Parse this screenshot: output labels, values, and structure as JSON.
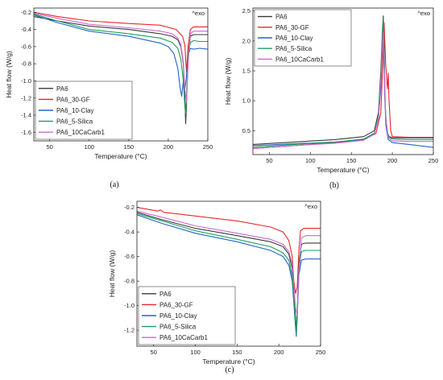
{
  "colors": {
    "PA6": "#3a3a3a",
    "PA6_30-GF": "#e8262c",
    "PA6_10-Clay": "#1f66c9",
    "PA6_5-Silica": "#1aa05c",
    "PA6_10CaCarb1": "#c86ad0"
  },
  "chart_data": [
    {
      "panel": "a",
      "caption": "(a)",
      "type": "line",
      "annotation": "^exo",
      "xlabel": "Temperature (°C)",
      "ylabel": "Heat flow (W/g)",
      "xlim": [
        30,
        250
      ],
      "ylim": [
        -1.7,
        -0.15
      ],
      "xticks": [
        50,
        100,
        150,
        200,
        250
      ],
      "yticks": [
        -0.2,
        -0.4,
        -0.6,
        -0.8,
        -1.0,
        -1.2,
        -1.4,
        -1.6
      ],
      "legend": "bottom-left",
      "series": [
        {
          "name": "PA6",
          "x": [
            30,
            60,
            100,
            150,
            190,
            205,
            212,
            216,
            219,
            221,
            222,
            223,
            225,
            228,
            232,
            240,
            250
          ],
          "y": [
            -0.25,
            -0.3,
            -0.36,
            -0.4,
            -0.45,
            -0.48,
            -0.52,
            -0.6,
            -0.8,
            -1.2,
            -1.5,
            -1.3,
            -0.7,
            -0.48,
            -0.46,
            -0.46,
            -0.46
          ]
        },
        {
          "name": "PA6_30-GF",
          "x": [
            30,
            60,
            100,
            150,
            190,
            210,
            218,
            221,
            223,
            225,
            228,
            232,
            240,
            250
          ],
          "y": [
            -0.2,
            -0.25,
            -0.3,
            -0.33,
            -0.35,
            -0.4,
            -0.48,
            -0.58,
            -0.9,
            -0.6,
            -0.4,
            -0.37,
            -0.37,
            -0.37
          ]
        },
        {
          "name": "PA6_10-Clay",
          "x": [
            30,
            60,
            100,
            150,
            190,
            200,
            207,
            212,
            215,
            217,
            219,
            221,
            223,
            225,
            228,
            232,
            240,
            250
          ],
          "y": [
            -0.23,
            -0.32,
            -0.42,
            -0.48,
            -0.56,
            -0.6,
            -0.68,
            -0.85,
            -1.08,
            -1.18,
            -1.0,
            -1.1,
            -0.95,
            -0.7,
            -0.62,
            -0.63,
            -0.62,
            -0.63
          ]
        },
        {
          "name": "PA6_5-Silica",
          "x": [
            30,
            60,
            100,
            150,
            190,
            205,
            212,
            216,
            219,
            221,
            222,
            223,
            225,
            228,
            232,
            240,
            250
          ],
          "y": [
            -0.22,
            -0.3,
            -0.4,
            -0.45,
            -0.5,
            -0.55,
            -0.62,
            -0.75,
            -1.0,
            -1.3,
            -1.38,
            -1.2,
            -0.7,
            -0.55,
            -0.53,
            -0.54,
            -0.54
          ]
        },
        {
          "name": "PA6_10CaCarb1",
          "x": [
            30,
            60,
            100,
            150,
            190,
            205,
            212,
            216,
            219,
            221,
            223,
            225,
            228,
            232,
            240,
            250
          ],
          "y": [
            -0.21,
            -0.27,
            -0.34,
            -0.38,
            -0.42,
            -0.45,
            -0.5,
            -0.58,
            -0.78,
            -1.1,
            -1.25,
            -0.8,
            -0.45,
            -0.42,
            -0.42,
            -0.42
          ]
        }
      ]
    },
    {
      "panel": "b",
      "caption": "(b)",
      "type": "line",
      "annotation": "^exo",
      "xlabel": "Temperature (°C)",
      "ylabel": "Heat flow (W/g)",
      "xlim": [
        30,
        250
      ],
      "ylim": [
        0.1,
        2.55
      ],
      "xticks": [
        50,
        100,
        150,
        200,
        250
      ],
      "yticks": [
        0.5,
        1.0,
        1.5,
        2.0,
        2.5
      ],
      "legend": "top-left",
      "series": [
        {
          "name": "PA6",
          "x": [
            30,
            80,
            130,
            165,
            178,
            183,
            186,
            188,
            189,
            190,
            191,
            193,
            196,
            200,
            220,
            250
          ],
          "y": [
            0.27,
            0.31,
            0.35,
            0.4,
            0.5,
            0.8,
            1.5,
            2.2,
            2.42,
            2.0,
            1.0,
            0.5,
            0.4,
            0.38,
            0.38,
            0.38
          ]
        },
        {
          "name": "PA6_30-GF",
          "x": [
            30,
            80,
            130,
            165,
            180,
            186,
            188,
            190,
            192,
            194,
            195,
            196,
            198,
            200,
            220,
            250
          ],
          "y": [
            0.2,
            0.25,
            0.3,
            0.35,
            0.45,
            0.8,
            1.5,
            2.3,
            1.6,
            1.2,
            1.46,
            1.0,
            0.5,
            0.4,
            0.39,
            0.39
          ]
        },
        {
          "name": "PA6_10-Clay",
          "x": [
            30,
            80,
            130,
            165,
            178,
            183,
            186,
            188,
            189,
            190,
            192,
            195,
            200,
            220,
            250
          ],
          "y": [
            0.25,
            0.28,
            0.31,
            0.35,
            0.45,
            0.7,
            1.2,
            1.9,
            2.1,
            1.5,
            0.6,
            0.35,
            0.3,
            0.27,
            0.22
          ]
        },
        {
          "name": "PA6_5-Silica",
          "x": [
            30,
            80,
            130,
            165,
            178,
            183,
            186,
            188,
            189,
            190,
            192,
            195,
            200,
            220,
            250
          ],
          "y": [
            0.22,
            0.27,
            0.31,
            0.36,
            0.46,
            0.75,
            1.4,
            2.1,
            2.38,
            1.7,
            0.7,
            0.4,
            0.36,
            0.35,
            0.35
          ]
        },
        {
          "name": "PA6_10CaCarb1",
          "x": [
            30,
            80,
            130,
            165,
            178,
            183,
            186,
            188,
            189,
            190,
            192,
            195,
            200,
            220,
            250
          ],
          "y": [
            0.2,
            0.25,
            0.29,
            0.34,
            0.44,
            0.7,
            1.3,
            1.95,
            2.15,
            1.6,
            0.65,
            0.38,
            0.33,
            0.32,
            0.32
          ]
        }
      ]
    },
    {
      "panel": "c",
      "caption": "(c)",
      "type": "line",
      "annotation": "^exo",
      "xlabel": "Temperature (°C)",
      "ylabel": "Heat flow (W/g)",
      "xlim": [
        30,
        250
      ],
      "ylim": [
        -1.33,
        -0.15
      ],
      "xticks": [
        50,
        100,
        150,
        200,
        250
      ],
      "yticks": [
        -0.2,
        -0.4,
        -0.6,
        -0.8,
        -1.0,
        -1.2
      ],
      "legend": "bottom-left",
      "series": [
        {
          "name": "PA6",
          "x": [
            30,
            60,
            100,
            150,
            190,
            205,
            212,
            216,
            218,
            220,
            221,
            222,
            224,
            227,
            232,
            240,
            250
          ],
          "y": [
            -0.24,
            -0.3,
            -0.37,
            -0.43,
            -0.48,
            -0.52,
            -0.58,
            -0.7,
            -0.9,
            -1.1,
            -1.2,
            -1.05,
            -0.65,
            -0.5,
            -0.49,
            -0.49,
            -0.49
          ]
        },
        {
          "name": "PA6_30-GF",
          "x": [
            30,
            55,
            58,
            62,
            100,
            150,
            190,
            205,
            212,
            216,
            218,
            220,
            222,
            224,
            226,
            230,
            240,
            250
          ],
          "y": [
            -0.2,
            -0.23,
            -0.22,
            -0.24,
            -0.27,
            -0.31,
            -0.36,
            -0.4,
            -0.47,
            -0.6,
            -0.8,
            -0.9,
            -0.85,
            -0.55,
            -0.39,
            -0.37,
            -0.37,
            -0.37
          ]
        },
        {
          "name": "PA6_10-Clay",
          "x": [
            30,
            60,
            100,
            150,
            190,
            205,
            212,
            216,
            218,
            220,
            221,
            222,
            224,
            227,
            232,
            240,
            250
          ],
          "y": [
            -0.26,
            -0.33,
            -0.41,
            -0.48,
            -0.55,
            -0.6,
            -0.67,
            -0.8,
            -0.98,
            -1.18,
            -1.25,
            -1.1,
            -0.75,
            -0.63,
            -0.62,
            -0.62,
            -0.62
          ]
        },
        {
          "name": "PA6_5-Silica",
          "x": [
            30,
            60,
            100,
            150,
            190,
            205,
            212,
            216,
            218,
            220,
            221,
            222,
            224,
            227,
            232,
            240,
            250
          ],
          "y": [
            -0.25,
            -0.31,
            -0.39,
            -0.46,
            -0.52,
            -0.57,
            -0.63,
            -0.76,
            -0.95,
            -1.15,
            -1.23,
            -1.05,
            -0.7,
            -0.56,
            -0.55,
            -0.55,
            -0.55
          ]
        },
        {
          "name": "PA6_10CaCarb1",
          "x": [
            30,
            60,
            100,
            150,
            190,
            205,
            212,
            216,
            218,
            220,
            222,
            224,
            227,
            232,
            240,
            250
          ],
          "y": [
            -0.23,
            -0.28,
            -0.35,
            -0.41,
            -0.46,
            -0.5,
            -0.56,
            -0.66,
            -0.85,
            -1.02,
            -1.08,
            -0.72,
            -0.45,
            -0.43,
            -0.43,
            -0.43
          ]
        }
      ]
    }
  ]
}
